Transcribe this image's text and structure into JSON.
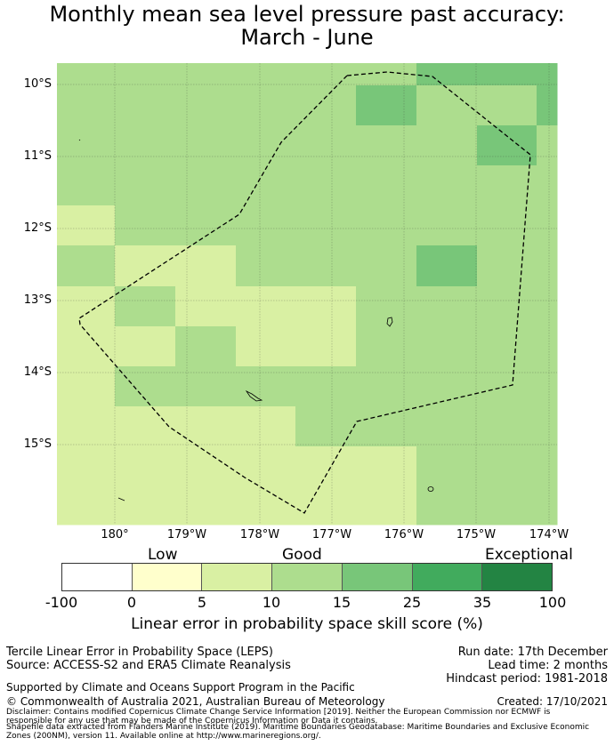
{
  "title": {
    "line1": "Monthly mean sea level pressure past accuracy:",
    "line2": "March - June"
  },
  "map": {
    "latitude_labels": [
      "10°S",
      "11°S",
      "12°S",
      "13°S",
      "14°S",
      "15°S"
    ],
    "longitude_labels": [
      "180°",
      "179°W",
      "178°W",
      "177°W",
      "176°W",
      "175°W",
      "174°W"
    ],
    "cell_values_note": "skill score category per grid cell (0=Low band, 1=Good, 2..)",
    "grid_categories": [
      [
        2,
        2,
        2,
        2,
        2,
        2,
        3,
        3,
        3
      ],
      [
        2,
        2,
        2,
        2,
        2,
        3,
        2,
        2,
        3
      ],
      [
        2,
        2,
        2,
        2,
        2,
        2,
        2,
        3,
        2
      ],
      [
        2,
        2,
        2,
        2,
        2,
        2,
        2,
        2,
        2
      ],
      [
        1,
        2,
        2,
        2,
        2,
        2,
        2,
        2,
        2
      ],
      [
        2,
        1,
        1,
        2,
        2,
        2,
        3,
        2,
        2
      ],
      [
        1,
        2,
        1,
        1,
        1,
        2,
        2,
        2,
        2
      ],
      [
        1,
        1,
        2,
        1,
        1,
        2,
        2,
        2,
        2
      ],
      [
        1,
        2,
        2,
        2,
        2,
        2,
        2,
        2,
        2
      ],
      [
        1,
        1,
        1,
        1,
        2,
        2,
        2,
        2,
        2
      ],
      [
        1,
        1,
        1,
        1,
        1,
        1,
        2,
        2,
        2
      ]
    ]
  },
  "legend": {
    "categories": [
      "Low",
      "Good",
      "Exceptional"
    ],
    "ticks": [
      "-100",
      "0",
      "5",
      "10",
      "15",
      "25",
      "35",
      "100"
    ],
    "colors": [
      "#ffffff",
      "#ffffcc",
      "#d9f0a3",
      "#addd8e",
      "#78c679",
      "#41ab5d",
      "#238443"
    ],
    "label": "Linear error in probability space skill score (%)"
  },
  "footer": {
    "method": "Tercile Linear Error in Probability Space (LEPS)",
    "source": "Source: ACCESS-S2 and ERA5 Climate Reanalysis",
    "run_date": "Run date: 17th December",
    "lead_time": "Lead time: 2 months",
    "hindcast": "Hindcast period: 1981-2018",
    "support": "Supported by Climate and Oceans Support Program in the Pacific",
    "copyright": "© Commonwealth of Australia 2021, Australian Bureau of Meteorology",
    "created": "Created: 17/10/2021",
    "disclaimer1": "Disclaimer: Contains modified Copernicus Climate Change Service Information [2019]. Neither the European Commission nor ECMWF is",
    "disclaimer2": "responsible for any use that may be made of the Copernicus Information or Data it contains.",
    "disclaimer3": "Shapefile data extracted from Flanders Marine Institute (2019). Maritime Boundaries Geodatabase: Maritime Boundaries and Exclusive Economic",
    "disclaimer4": "Zones (200NM), version 11. Available online at http://www.marineregions.org/."
  }
}
